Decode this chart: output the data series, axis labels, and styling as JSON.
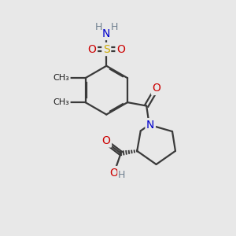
{
  "bg_color": "#e8e8e8",
  "atom_colors": {
    "C": "#1a1a1a",
    "N": "#0000cc",
    "O": "#cc0000",
    "S": "#ccaa00",
    "H": "#708090"
  },
  "bond_color": "#3a3a3a",
  "bond_width": 1.6,
  "figsize": [
    3.0,
    3.0
  ],
  "dpi": 100
}
